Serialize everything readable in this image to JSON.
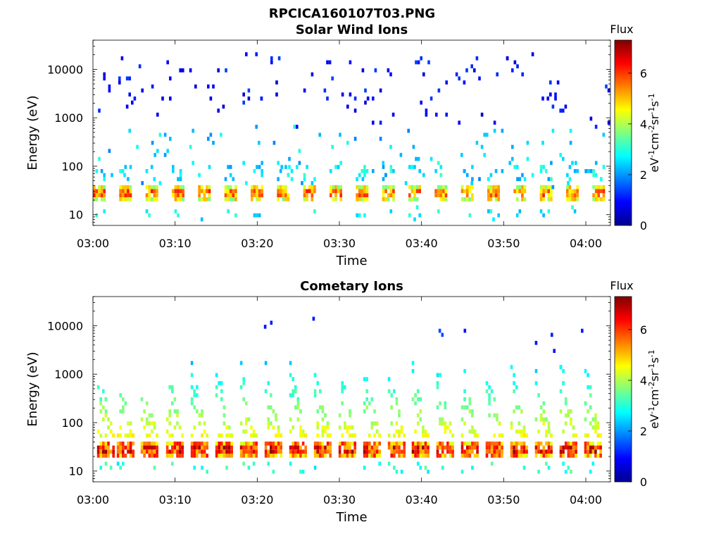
{
  "figure": {
    "title": "RPCICA160107T03.PNG"
  },
  "chart_data": [
    {
      "type": "heatmap",
      "title": "Solar Wind Ions",
      "xlabel": "Time",
      "ylabel": "Energy (eV)",
      "x_ticks": [
        "03:00",
        "03:10",
        "03:20",
        "03:30",
        "03:40",
        "03:50",
        "04:00"
      ],
      "x_range_minutes": [
        0,
        63
      ],
      "y_scale": "log",
      "y_ticks": [
        10,
        100,
        1000,
        10000
      ],
      "y_tick_labels": [
        "10",
        "100",
        "1000",
        "10000"
      ],
      "y_range": [
        6,
        40000
      ],
      "colorbar": {
        "title": "Flux",
        "label": "eV-1cm-2sr-1s-1",
        "range": [
          0,
          7.3
        ],
        "ticks": [
          0,
          2,
          4,
          6
        ],
        "tick_labels": [
          "0",
          "2",
          "4",
          "6"
        ],
        "colormap": "jet"
      },
      "pattern": {
        "core_band_energy_eV": [
          18,
          42
        ],
        "core_flux": [
          4.5,
          6.3
        ],
        "sweep_start_minutes": [
          0,
          3.2,
          6.4,
          9.6,
          12.8,
          16.0,
          19.2,
          22.4,
          25.6,
          28.8,
          32.0,
          35.2,
          38.4,
          41.6,
          44.8,
          48.0,
          51.2,
          54.4,
          57.6,
          60.8
        ],
        "sparse_high_energy_flux": [
          0.6,
          1.4
        ]
      },
      "grid": false
    },
    {
      "type": "heatmap",
      "title": "Cometary Ions",
      "xlabel": "Time",
      "ylabel": "Energy (eV)",
      "x_ticks": [
        "03:00",
        "03:10",
        "03:20",
        "03:30",
        "03:40",
        "03:50",
        "04:00"
      ],
      "x_range_minutes": [
        0,
        63
      ],
      "y_scale": "log",
      "y_ticks": [
        10,
        100,
        1000,
        10000
      ],
      "y_tick_labels": [
        "10",
        "100",
        "1000",
        "10000"
      ],
      "y_range": [
        6,
        40000
      ],
      "colorbar": {
        "title": "Flux",
        "label": "eV-1cm-2sr-1s-1",
        "range": [
          0,
          7.3
        ],
        "ticks": [
          0,
          2,
          4,
          6
        ],
        "tick_labels": [
          "0",
          "2",
          "4",
          "6"
        ],
        "colormap": "jet"
      },
      "pattern": {
        "core_band_energy_eV": [
          18,
          42
        ],
        "core_flux": [
          5.0,
          7.2
        ],
        "sweep_start_minutes": [
          0.5,
          2.9,
          5.8,
          8.9,
          11.9,
          14.9,
          17.9,
          20.9,
          23.9,
          26.9,
          29.9,
          32.9,
          35.9,
          38.8,
          41.8,
          44.8,
          47.8,
          50.8,
          53.8,
          56.8,
          59.8
        ],
        "sweep_peak_energy_eV": 2000,
        "grid": false
      },
      "grid": false
    }
  ]
}
